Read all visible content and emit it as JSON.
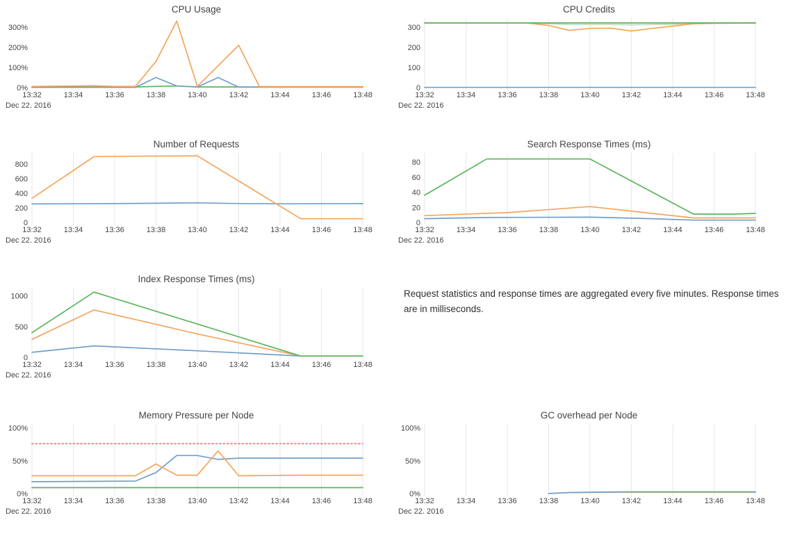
{
  "note": {
    "text": "Request statistics and response times are aggregated every five minutes. Response times are in milliseconds."
  },
  "x_axis": {
    "date_label": "Dec 22. 2016",
    "tick_labels": [
      "13:32",
      "13:34",
      "13:36",
      "13:38",
      "13:40",
      "13:42",
      "13:44",
      "13:46",
      "13:48"
    ],
    "tick_minutes": [
      0,
      2,
      4,
      6,
      8,
      10,
      12,
      14,
      16
    ]
  },
  "colors": {
    "blue": "#6f9fca",
    "orange": "#f3a55b",
    "green": "#5bb55b",
    "lightgreen": "#bcdcb4",
    "red": "#ec8888",
    "grid": "#e7e7e7",
    "tick_text": "#444444",
    "title_text": "#444444"
  },
  "chart_data": [
    {
      "type": "line",
      "title": "CPU Usage",
      "grid": false,
      "xlim": [
        0,
        16
      ],
      "ylim": [
        0,
        345
      ],
      "yticks": [
        {
          "v": 0,
          "label": "0%"
        },
        {
          "v": 100,
          "label": "100%"
        },
        {
          "v": 200,
          "label": "200%"
        },
        {
          "v": 300,
          "label": "300%"
        }
      ],
      "series": [
        {
          "name": "green",
          "color": "green",
          "dash": false,
          "values": [
            [
              0,
              3
            ],
            [
              4,
              3
            ],
            [
              5,
              3
            ],
            [
              6,
              6
            ],
            [
              7,
              8
            ],
            [
              8,
              3
            ],
            [
              10,
              3
            ],
            [
              16,
              3
            ]
          ]
        },
        {
          "name": "blue",
          "color": "blue",
          "dash": false,
          "values": [
            [
              0,
              1
            ],
            [
              5,
              1
            ],
            [
              6,
              50
            ],
            [
              7,
              8
            ],
            [
              8,
              3
            ],
            [
              9,
              50
            ],
            [
              10,
              2
            ],
            [
              16,
              2
            ]
          ]
        },
        {
          "name": "orange",
          "color": "orange",
          "dash": false,
          "values": [
            [
              0,
              6
            ],
            [
              2,
              8
            ],
            [
              3,
              9
            ],
            [
              4,
              6
            ],
            [
              5,
              6
            ],
            [
              6,
              130
            ],
            [
              7,
              330
            ],
            [
              8,
              6
            ],
            [
              10,
              210
            ],
            [
              11,
              5
            ],
            [
              13,
              5
            ],
            [
              16,
              5
            ]
          ]
        }
      ]
    },
    {
      "type": "line",
      "title": "CPU Credits",
      "grid": true,
      "xlim": [
        0,
        16
      ],
      "ylim": [
        0,
        345
      ],
      "yticks": [
        {
          "v": 0,
          "label": "0"
        },
        {
          "v": 100,
          "label": "100"
        },
        {
          "v": 200,
          "label": "200"
        },
        {
          "v": 300,
          "label": "300"
        }
      ],
      "series": [
        {
          "name": "lightgreen",
          "color": "lightgreen",
          "dash": false,
          "values": [
            [
              0,
              320
            ],
            [
              5,
              320
            ],
            [
              6,
              317
            ],
            [
              7,
              313
            ],
            [
              9,
              313
            ],
            [
              10,
              312
            ],
            [
              12,
              314
            ],
            [
              13,
              316
            ],
            [
              14,
              318
            ],
            [
              16,
              320
            ]
          ]
        },
        {
          "name": "orange",
          "color": "orange",
          "dash": false,
          "values": [
            [
              0,
              320
            ],
            [
              5,
              320
            ],
            [
              6,
              308
            ],
            [
              7,
              284
            ],
            [
              8,
              294
            ],
            [
              9,
              295
            ],
            [
              10,
              281
            ],
            [
              11,
              294
            ],
            [
              12,
              305
            ],
            [
              13,
              317
            ],
            [
              14,
              320
            ],
            [
              16,
              321
            ]
          ]
        },
        {
          "name": "green",
          "color": "green",
          "dash": false,
          "values": [
            [
              0,
              321
            ],
            [
              16,
              321
            ]
          ]
        },
        {
          "name": "blue",
          "color": "blue",
          "dash": false,
          "values": [
            [
              0,
              1
            ],
            [
              16,
              1
            ]
          ]
        }
      ]
    },
    {
      "type": "line",
      "title": "Number of Requests",
      "grid": true,
      "xlim": [
        0,
        16
      ],
      "ylim": [
        0,
        950
      ],
      "yticks": [
        {
          "v": 0,
          "label": "0"
        },
        {
          "v": 200,
          "label": "200"
        },
        {
          "v": 400,
          "label": "400"
        },
        {
          "v": 600,
          "label": "600"
        },
        {
          "v": 800,
          "label": "800"
        }
      ],
      "series": [
        {
          "name": "blue",
          "color": "blue",
          "dash": false,
          "values": [
            [
              0,
              253
            ],
            [
              4,
              257
            ],
            [
              7,
              265
            ],
            [
              8,
              268
            ],
            [
              10,
              258
            ],
            [
              12,
              255
            ],
            [
              16,
              257
            ]
          ]
        },
        {
          "name": "orange",
          "color": "orange",
          "dash": false,
          "values": [
            [
              0,
              330
            ],
            [
              3,
              900
            ],
            [
              5,
              905
            ],
            [
              8,
              910
            ],
            [
              13,
              50
            ],
            [
              16,
              50
            ]
          ]
        }
      ]
    },
    {
      "type": "line",
      "title": "Search Response Times (ms)",
      "grid": true,
      "xlim": [
        0,
        16
      ],
      "ylim": [
        0,
        92
      ],
      "yticks": [
        {
          "v": 0,
          "label": "0"
        },
        {
          "v": 20,
          "label": "20"
        },
        {
          "v": 40,
          "label": "40"
        },
        {
          "v": 60,
          "label": "60"
        },
        {
          "v": 80,
          "label": "80"
        }
      ],
      "series": [
        {
          "name": "blue",
          "color": "blue",
          "dash": false,
          "values": [
            [
              0,
              5
            ],
            [
              3,
              6.5
            ],
            [
              8,
              7
            ],
            [
              11,
              5
            ],
            [
              13,
              3
            ],
            [
              16,
              3
            ]
          ]
        },
        {
          "name": "orange",
          "color": "orange",
          "dash": false,
          "values": [
            [
              0,
              9
            ],
            [
              4,
              13
            ],
            [
              8,
              21
            ],
            [
              11,
              12
            ],
            [
              13,
              6
            ],
            [
              16,
              6
            ]
          ]
        },
        {
          "name": "green",
          "color": "green",
          "dash": false,
          "values": [
            [
              0,
              36
            ],
            [
              3,
              84
            ],
            [
              8,
              84
            ],
            [
              13,
              11
            ],
            [
              15,
              11
            ],
            [
              16,
              12
            ]
          ]
        }
      ]
    },
    {
      "type": "line",
      "title": "Index Response Times (ms)",
      "grid": true,
      "xlim": [
        0,
        16
      ],
      "ylim": [
        0,
        1130
      ],
      "yticks": [
        {
          "v": 0,
          "label": "0"
        },
        {
          "v": 500,
          "label": "500"
        },
        {
          "v": 1000,
          "label": "1000"
        }
      ],
      "series": [
        {
          "name": "blue",
          "color": "blue",
          "dash": false,
          "values": [
            [
              0,
              80
            ],
            [
              3,
              185
            ],
            [
              8,
              105
            ],
            [
              13,
              20
            ],
            [
              16,
              20
            ]
          ]
        },
        {
          "name": "orange",
          "color": "orange",
          "dash": false,
          "values": [
            [
              0,
              290
            ],
            [
              3,
              770
            ],
            [
              8,
              380
            ],
            [
              13,
              20
            ],
            [
              16,
              20
            ]
          ]
        },
        {
          "name": "green",
          "color": "green",
          "dash": false,
          "values": [
            [
              0,
              400
            ],
            [
              3,
              1060
            ],
            [
              13,
              20
            ],
            [
              16,
              20
            ]
          ]
        }
      ]
    },
    {
      "type": "line",
      "title": "Memory Pressure per Node",
      "grid": true,
      "xlim": [
        0,
        16
      ],
      "ylim": [
        0,
        106
      ],
      "yticks": [
        {
          "v": 0,
          "label": "0%"
        },
        {
          "v": 50,
          "label": "50%"
        },
        {
          "v": 100,
          "label": "100%"
        }
      ],
      "series": [
        {
          "name": "green",
          "color": "green",
          "dash": false,
          "values": [
            [
              0,
              9
            ],
            [
              16,
              9
            ]
          ]
        },
        {
          "name": "blue",
          "color": "blue",
          "dash": false,
          "values": [
            [
              0,
              18
            ],
            [
              5,
              19
            ],
            [
              6,
              32
            ],
            [
              7,
              58
            ],
            [
              8,
              58
            ],
            [
              9,
              52
            ],
            [
              10,
              54
            ],
            [
              16,
              54
            ]
          ]
        },
        {
          "name": "orange",
          "color": "orange",
          "dash": false,
          "values": [
            [
              0,
              27
            ],
            [
              5,
              27
            ],
            [
              6,
              45
            ],
            [
              7,
              28
            ],
            [
              8,
              28
            ],
            [
              9,
              65
            ],
            [
              10,
              27
            ],
            [
              13,
              28
            ],
            [
              16,
              28
            ]
          ]
        },
        {
          "name": "red-threshold",
          "color": "red",
          "dash": true,
          "values": [
            [
              0,
              76
            ],
            [
              16,
              76
            ]
          ]
        }
      ]
    },
    {
      "type": "line",
      "title": "GC overhead per Node",
      "grid": true,
      "xlim": [
        0,
        16
      ],
      "ylim": [
        0,
        106
      ],
      "yticks": [
        {
          "v": 0,
          "label": "0%"
        },
        {
          "v": 50,
          "label": "50%"
        },
        {
          "v": 100,
          "label": "100%"
        }
      ],
      "series": [
        {
          "name": "orange",
          "color": "orange",
          "dash": false,
          "values": [
            [
              7,
              1.5
            ],
            [
              9,
              2
            ],
            [
              16,
              2
            ]
          ]
        },
        {
          "name": "blue",
          "color": "blue",
          "dash": false,
          "values": [
            [
              6,
              0
            ],
            [
              7,
              1.5
            ],
            [
              8,
              2
            ],
            [
              10,
              2.5
            ],
            [
              16,
              2.5
            ]
          ]
        }
      ]
    }
  ]
}
